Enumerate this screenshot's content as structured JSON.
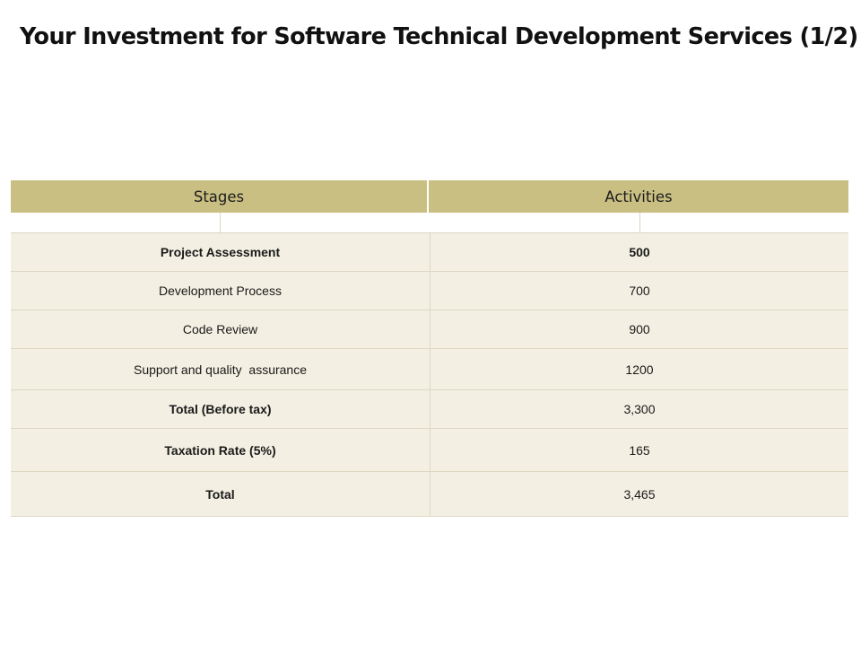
{
  "slide": {
    "title": "Your Investment for Software Technical Development Services (1/2)"
  },
  "table": {
    "headers": {
      "stages": "Stages",
      "activities": "Activities"
    },
    "rows": [
      {
        "stage": "Project Assessment",
        "value": "500",
        "bold": true
      },
      {
        "stage": "Development Process",
        "value": "700",
        "bold": false
      },
      {
        "stage": "Code Review",
        "value": "900",
        "bold": false
      },
      {
        "stage": "Support and quality  assurance",
        "value": "1200",
        "bold": false
      },
      {
        "stage": "Total (Before tax)",
        "value": "3,300",
        "bold": true
      },
      {
        "stage": "Taxation Rate (5%)",
        "value": "165",
        "bold": true
      },
      {
        "stage": "Total",
        "value": "3,465",
        "bold": true
      }
    ]
  },
  "colors": {
    "header_bg": "#c9bf82",
    "row_bg": "#f3efe2",
    "border": "#ddd8c4"
  }
}
